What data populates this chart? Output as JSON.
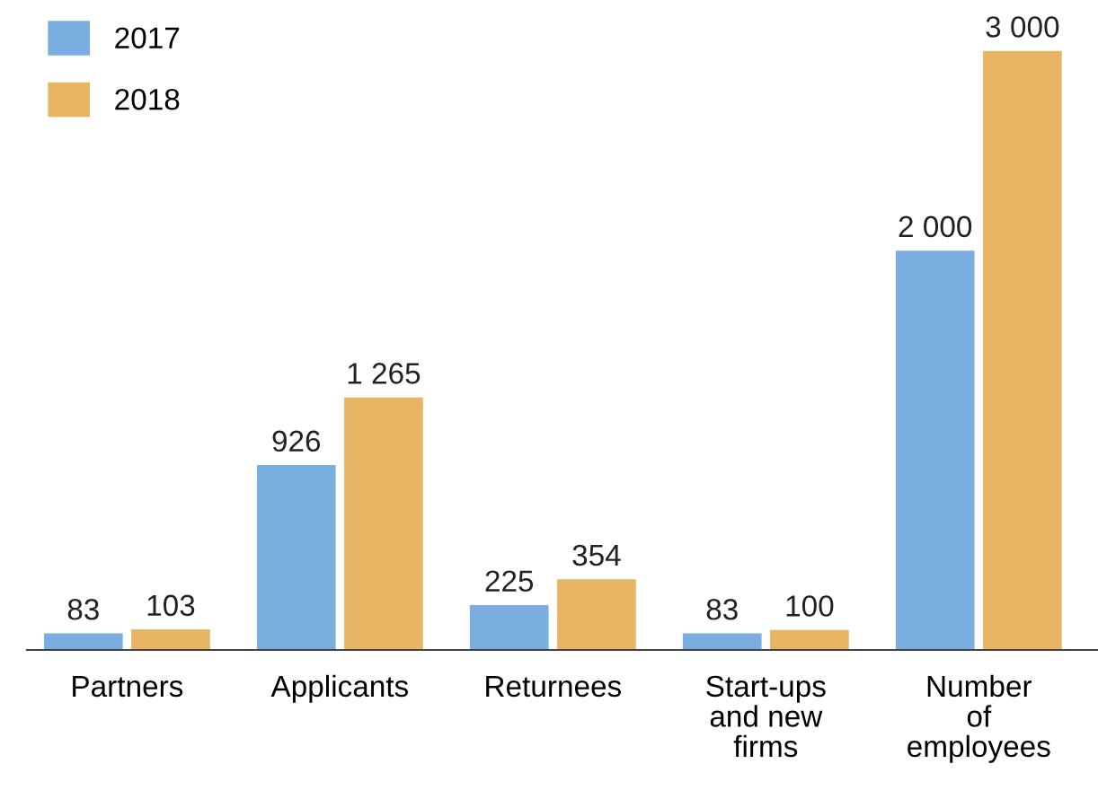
{
  "chart_data": {
    "type": "bar",
    "categories": [
      "Partners",
      "Applicants",
      "Returnees",
      "Start-ups\nand new\nfirms",
      "Number\nof\nemployees"
    ],
    "series": [
      {
        "name": "2017",
        "color": "#7aaee0",
        "values": [
          83,
          926,
          225,
          83,
          2000
        ],
        "value_labels": [
          "83",
          "926",
          "225",
          "83",
          "2 000"
        ]
      },
      {
        "name": "2018",
        "color": "#e8b565",
        "values": [
          103,
          1265,
          354,
          100,
          3000
        ],
        "value_labels": [
          "103",
          "1 265",
          "354",
          "100",
          "3 000"
        ]
      }
    ],
    "legend": "top left",
    "grid": false
  }
}
